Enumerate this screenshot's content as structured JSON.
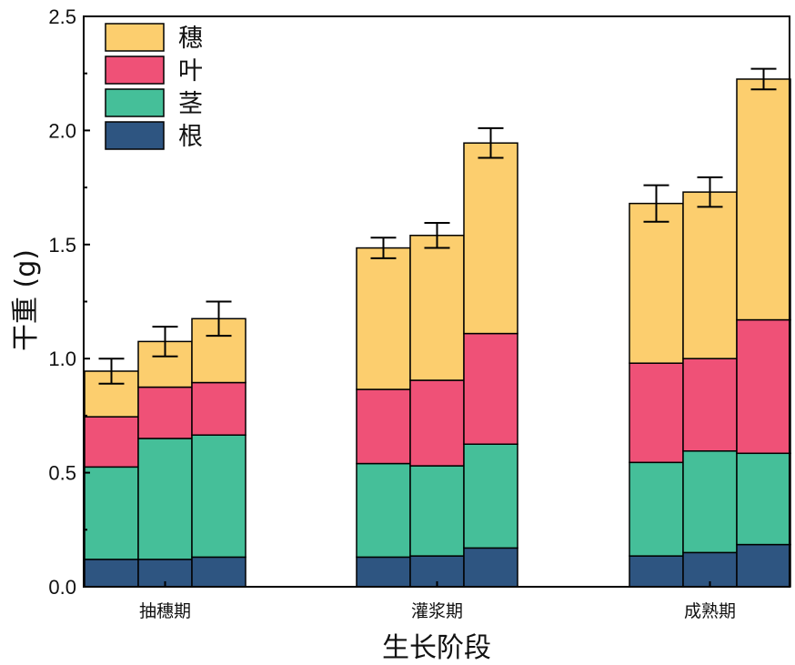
{
  "chart_data": {
    "type": "bar",
    "stacked": true,
    "xlabel": "生长阶段",
    "ylabel": "干重 (g)",
    "ylim": [
      0,
      2.5
    ],
    "yticks": [
      "0.0",
      "0.5",
      "1.0",
      "1.5",
      "2.0",
      "2.5"
    ],
    "groups": [
      "抽穗期",
      "灌浆期",
      "成熟期"
    ],
    "bars_per_group": 3,
    "legend_position": "top-left",
    "series": [
      {
        "name": "根",
        "color": "#2e5581",
        "values": [
          [
            0.12,
            0.12,
            0.13
          ],
          [
            0.13,
            0.135,
            0.17
          ],
          [
            0.135,
            0.15,
            0.185
          ]
        ]
      },
      {
        "name": "茎",
        "color": "#45bf99",
        "values": [
          [
            0.405,
            0.53,
            0.535
          ],
          [
            0.41,
            0.395,
            0.455
          ],
          [
            0.41,
            0.445,
            0.4
          ]
        ]
      },
      {
        "name": "叶",
        "color": "#ef5177",
        "values": [
          [
            0.22,
            0.225,
            0.23
          ],
          [
            0.325,
            0.375,
            0.485
          ],
          [
            0.435,
            0.405,
            0.585
          ]
        ]
      },
      {
        "name": "穗",
        "color": "#fcce6e",
        "values": [
          [
            0.2,
            0.2,
            0.28
          ],
          [
            0.62,
            0.635,
            0.835
          ],
          [
            0.7,
            0.73,
            1.055
          ]
        ]
      }
    ],
    "totals": [
      [
        0.945,
        1.075,
        1.175
      ],
      [
        1.485,
        1.54,
        1.945
      ],
      [
        1.68,
        1.73,
        2.225
      ]
    ],
    "errors": [
      [
        0.055,
        0.065,
        0.075
      ],
      [
        0.045,
        0.055,
        0.065
      ],
      [
        0.08,
        0.065,
        0.045
      ]
    ],
    "legend_order": [
      "穗",
      "叶",
      "茎",
      "根"
    ]
  }
}
